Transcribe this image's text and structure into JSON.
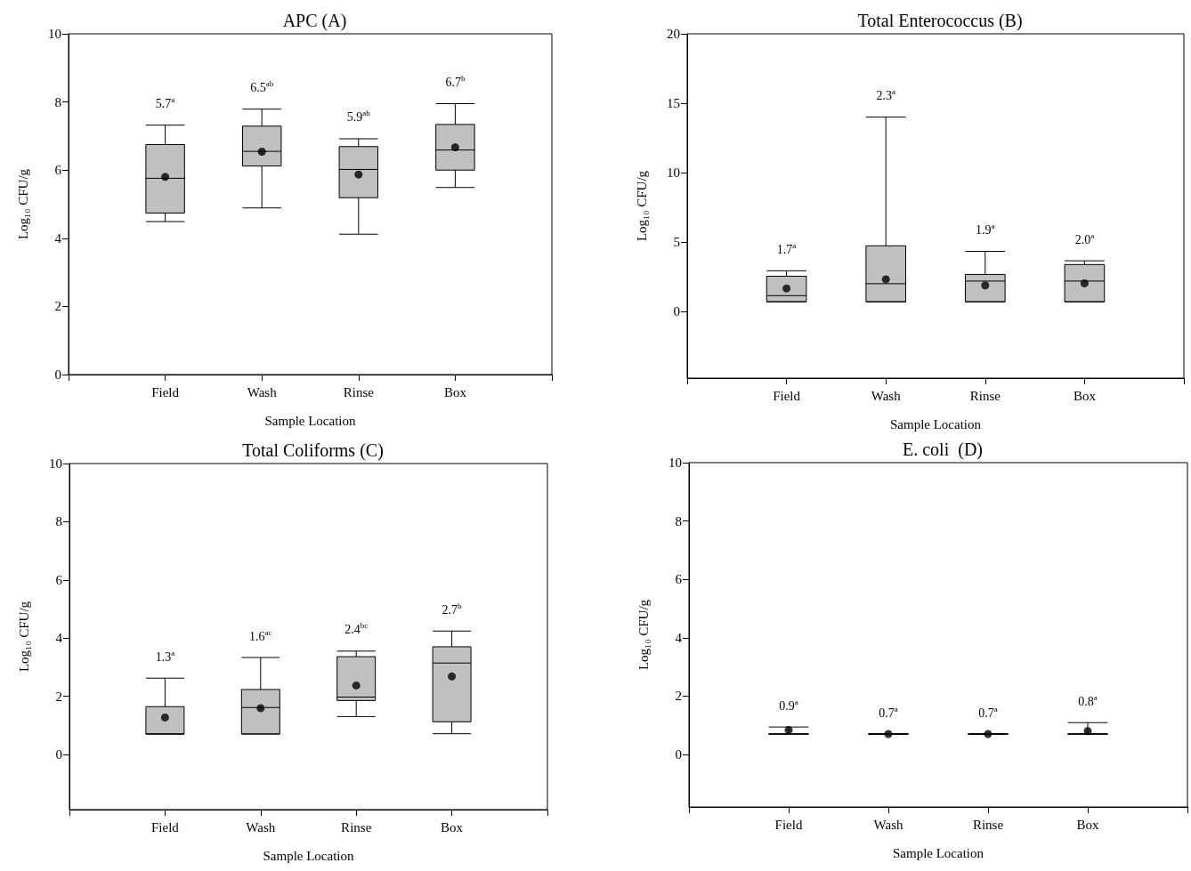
{
  "chart_data": [
    {
      "type": "box",
      "title": "APC (A)",
      "xlabel": "Sample Location",
      "ylabel": "Log₁₀ CFU/g",
      "categories": [
        "Field",
        "Wash",
        "Rinse",
        "Box"
      ],
      "ylim": [
        0,
        10
      ],
      "yticks": [
        0,
        2,
        4,
        6,
        8,
        10
      ],
      "series": [
        {
          "type": "box",
          "color": "#c0c0c0",
          "boxes": [
            {
              "low": 4.49,
              "q1": 4.74,
              "median": 5.76,
              "q3": 6.75,
              "high": 7.32
            },
            {
              "low": 4.89,
              "q1": 6.12,
              "median": 6.55,
              "q3": 7.29,
              "high": 7.79
            },
            {
              "low": 4.12,
              "q1": 5.19,
              "median": 6.02,
              "q3": 6.69,
              "high": 6.92
            },
            {
              "low": 5.49,
              "q1": 6.0,
              "median": 6.59,
              "q3": 7.34,
              "high": 7.95
            }
          ]
        },
        {
          "type": "scatter",
          "color": "#000000",
          "marker": "circle",
          "x": [
            "Field",
            "Wash",
            "Rinse",
            "Box"
          ],
          "values": [
            5.8,
            6.54,
            5.87,
            6.67
          ]
        }
      ],
      "annotations": [
        "5.7$^{a}$",
        "6.5$^{ab}$",
        "5.9$^{ab}$",
        "6.7$^{b}$"
      ]
    },
    {
      "type": "box",
      "title": "Total Enterococcus (B)",
      "xlabel": "Sample Location",
      "ylabel": "Log₁₀ CFU/g",
      "categories": [
        "Field",
        "Wash",
        "Rinse",
        "Box"
      ],
      "ylim": [
        -4.8,
        20
      ],
      "yticks": [
        0,
        5,
        10,
        15,
        20
      ],
      "series": [
        {
          "type": "box",
          "color": "#c0c0c0",
          "boxes": [
            {
              "low": 0.7,
              "q1": 0.7,
              "median": 1.14,
              "q3": 2.54,
              "high": 2.93
            },
            {
              "low": 0.7,
              "q1": 0.7,
              "median": 2.0,
              "q3": 4.73,
              "high": 14.0
            },
            {
              "low": 0.7,
              "q1": 0.7,
              "median": 2.19,
              "q3": 2.67,
              "high": 4.33
            },
            {
              "low": 0.7,
              "q1": 0.7,
              "median": 2.19,
              "q3": 3.38,
              "high": 3.65
            }
          ]
        },
        {
          "type": "scatter",
          "color": "#000000",
          "marker": "circle",
          "x": [
            "Field",
            "Wash",
            "Rinse",
            "Box"
          ],
          "values": [
            1.66,
            2.32,
            1.88,
            2.03
          ]
        }
      ],
      "annotations": [
        "1.7$^{a}$",
        "2.3$^{a}$",
        "1.9$^{a}$",
        "2.0$^{a}$"
      ]
    },
    {
      "type": "box",
      "title": "Total Coliforms (C)",
      "xlabel": "Sample Location",
      "ylabel": "Log₁₀ CFU/g",
      "categories": [
        "Field",
        "Wash",
        "Rinse",
        "Box"
      ],
      "ylim": [
        -1.9,
        10
      ],
      "yticks": [
        0,
        2,
        4,
        6,
        8,
        10
      ],
      "series": [
        {
          "type": "box",
          "color": "#c0c0c0",
          "boxes": [
            {
              "low": 0.7,
              "q1": 0.7,
              "median": 0.7,
              "q3": 1.64,
              "high": 2.62
            },
            {
              "low": 0.7,
              "q1": 0.7,
              "median": 1.61,
              "q3": 2.23,
              "high": 3.33
            },
            {
              "low": 1.3,
              "q1": 1.85,
              "median": 1.97,
              "q3": 3.36,
              "high": 3.55
            },
            {
              "low": 0.71,
              "q1": 1.12,
              "median": 3.14,
              "q3": 3.7,
              "high": 4.24
            }
          ]
        },
        {
          "type": "scatter",
          "color": "#000000",
          "marker": "circle",
          "x": [
            "Field",
            "Wash",
            "Rinse",
            "Box"
          ],
          "values": [
            1.27,
            1.59,
            2.37,
            2.68
          ]
        }
      ],
      "annotations": [
        "1.3$^{a}$",
        "1.6$^{ac}$",
        "2.4$^{bc}$",
        "2.7$^{b}$"
      ]
    },
    {
      "type": "box",
      "title": "E. coli  (D)",
      "xlabel": "Sample Location",
      "ylabel": "Log₁₀ CFU/g",
      "categories": [
        "Field",
        "Wash",
        "Rinse",
        "Box"
      ],
      "ylim": [
        -1.8,
        10
      ],
      "yticks": [
        0,
        2,
        4,
        6,
        8,
        10
      ],
      "series": [
        {
          "type": "box",
          "color": "#000000",
          "boxes": [
            {
              "low": 0.7,
              "q1": 0.7,
              "median": 0.7,
              "q3": 0.7,
              "high": 0.94
            },
            {
              "low": 0.7,
              "q1": 0.7,
              "median": 0.7,
              "q3": 0.7,
              "high": 0.7
            },
            {
              "low": 0.7,
              "q1": 0.7,
              "median": 0.7,
              "q3": 0.7,
              "high": 0.7
            },
            {
              "low": 0.7,
              "q1": 0.7,
              "median": 0.7,
              "q3": 0.7,
              "high": 1.09
            }
          ]
        },
        {
          "type": "scatter",
          "color": "#000000",
          "marker": "circle",
          "x": [
            "Field",
            "Wash",
            "Rinse",
            "Box"
          ],
          "values": [
            0.84,
            0.7,
            0.7,
            0.8
          ]
        }
      ],
      "annotations": [
        "0.9$^{a}$",
        "0.7$^{a}$",
        "0.7$^{a}$",
        "0.8$^{a}$"
      ]
    }
  ]
}
